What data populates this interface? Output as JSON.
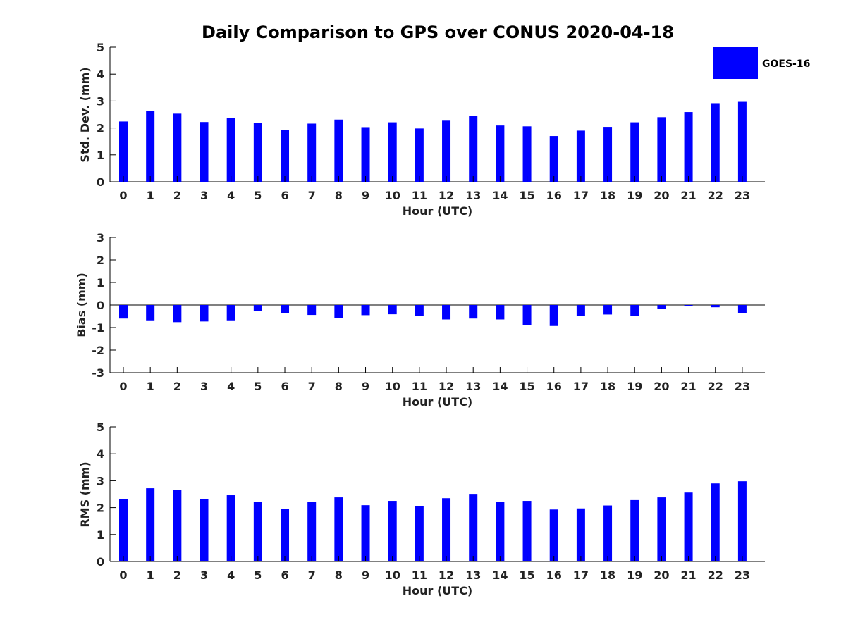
{
  "figure": {
    "title": "Daily Comparison to GPS over CONUS 2020-04-18",
    "legend": {
      "label": "GOES-16",
      "color": "#0000ff",
      "placement": "top-right"
    }
  },
  "chart_data": [
    {
      "type": "bar",
      "categories": [
        "0",
        "1",
        "2",
        "3",
        "4",
        "5",
        "6",
        "7",
        "8",
        "9",
        "10",
        "11",
        "12",
        "13",
        "14",
        "15",
        "16",
        "17",
        "18",
        "19",
        "20",
        "21",
        "22",
        "23"
      ],
      "series": [
        {
          "name": "GOES-16",
          "color": "#0000ff",
          "values": [
            2.24,
            2.63,
            2.53,
            2.22,
            2.37,
            2.19,
            1.93,
            2.16,
            2.31,
            2.03,
            2.21,
            1.98,
            2.27,
            2.45,
            2.09,
            2.06,
            1.7,
            1.9,
            2.04,
            2.21,
            2.4,
            2.59,
            2.92,
            2.97
          ]
        }
      ],
      "xlabel": "Hour (UTC)",
      "ylabel": "Std. Dev. (mm)",
      "ylim": [
        0,
        5
      ],
      "yticks": [
        "0",
        "1",
        "2",
        "3",
        "4",
        "5"
      ],
      "grid": false
    },
    {
      "type": "bar",
      "categories": [
        "0",
        "1",
        "2",
        "3",
        "4",
        "5",
        "6",
        "7",
        "8",
        "9",
        "10",
        "11",
        "12",
        "13",
        "14",
        "15",
        "16",
        "17",
        "18",
        "19",
        "20",
        "21",
        "22",
        "23"
      ],
      "series": [
        {
          "name": "GOES-16",
          "color": "#0000ff",
          "values": [
            -0.6,
            -0.68,
            -0.76,
            -0.73,
            -0.68,
            -0.28,
            -0.37,
            -0.44,
            -0.57,
            -0.45,
            -0.41,
            -0.48,
            -0.64,
            -0.6,
            -0.64,
            -0.88,
            -0.93,
            -0.47,
            -0.42,
            -0.48,
            -0.17,
            -0.06,
            -0.1,
            -0.35
          ]
        }
      ],
      "xlabel": "Hour (UTC)",
      "ylabel": "Bias (mm)",
      "ylim": [
        -3,
        3
      ],
      "yticks": [
        "-3",
        "-2",
        "-1",
        "0",
        "1",
        "2",
        "3"
      ],
      "grid": false
    },
    {
      "type": "bar",
      "categories": [
        "0",
        "1",
        "2",
        "3",
        "4",
        "5",
        "6",
        "7",
        "8",
        "9",
        "10",
        "11",
        "12",
        "13",
        "14",
        "15",
        "16",
        "17",
        "18",
        "19",
        "20",
        "21",
        "22",
        "23"
      ],
      "series": [
        {
          "name": "GOES-16",
          "color": "#0000ff",
          "values": [
            2.33,
            2.72,
            2.65,
            2.33,
            2.46,
            2.21,
            1.96,
            2.2,
            2.38,
            2.09,
            2.25,
            2.05,
            2.35,
            2.51,
            2.2,
            2.25,
            1.93,
            1.97,
            2.08,
            2.28,
            2.38,
            2.56,
            2.9,
            2.98
          ]
        }
      ],
      "xlabel": "Hour (UTC)",
      "ylabel": "RMS (mm)",
      "ylim": [
        0,
        5
      ],
      "yticks": [
        "0",
        "1",
        "2",
        "3",
        "4",
        "5"
      ],
      "grid": false
    }
  ]
}
